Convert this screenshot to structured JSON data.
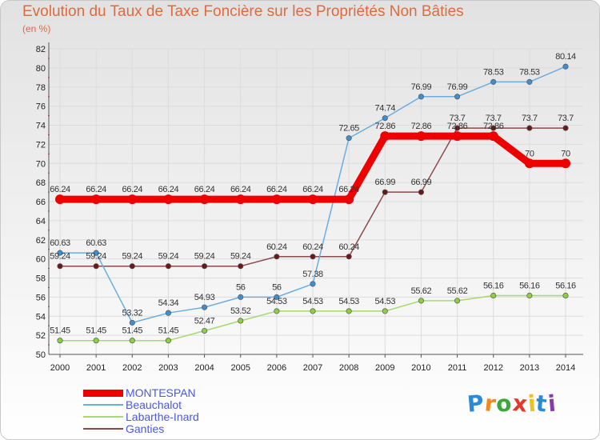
{
  "colors": {
    "title": "#e06a3c",
    "legend_text": "#4a5ad8",
    "grid": "#dcdcdc",
    "axis": "#555555"
  },
  "chart_data": {
    "type": "line",
    "title": "Evolution du Taux de Taxe Foncière sur les Propriétés Non Bâties",
    "ylabel": "(en %)",
    "xlabel": "",
    "ylim": [
      50,
      82
    ],
    "y_ticks": [
      "50",
      "52",
      "54",
      "56",
      "58",
      "60",
      "62",
      "64",
      "66",
      "68",
      "70",
      "72",
      "74",
      "76",
      "78",
      "80",
      "82"
    ],
    "categories": [
      "2000",
      "2001",
      "2002",
      "2003",
      "2004",
      "2005",
      "2006",
      "2007",
      "2008",
      "2009",
      "2010",
      "2011",
      "2012",
      "2013",
      "2014"
    ],
    "series": [
      {
        "name": "MONTESPAN",
        "color": "#ee0000",
        "marker": "#ee0000",
        "values": [
          66.24,
          66.24,
          66.24,
          66.24,
          66.24,
          66.24,
          66.24,
          66.24,
          66.24,
          72.86,
          72.86,
          72.86,
          72.86,
          70,
          70
        ],
        "labels": [
          "66.24",
          "66.24",
          "66.24",
          "66.24",
          "66.24",
          "66.24",
          "66.24",
          "66.24",
          "66.24",
          "72.86",
          "72.86",
          "72.86",
          "72.86",
          "70",
          "70"
        ]
      },
      {
        "name": "Beauchalot",
        "color": "#6aaee0",
        "marker": "#3d8fd0",
        "values": [
          60.63,
          60.63,
          53.32,
          54.34,
          54.93,
          56,
          56,
          57.38,
          72.65,
          74.74,
          76.99,
          76.99,
          78.53,
          78.53,
          80.14
        ],
        "labels": [
          "60.63",
          "60.63",
          "53.32",
          "54.34",
          "54.93",
          "56",
          "56",
          "57.38",
          "72.65",
          "74.74",
          "76.99",
          "76.99",
          "78.53",
          "78.53",
          "80.14"
        ]
      },
      {
        "name": "Labarthe-Inard",
        "color": "#a8d870",
        "marker": "#8cd040",
        "values": [
          51.45,
          51.45,
          51.45,
          51.45,
          52.47,
          53.52,
          54.53,
          54.53,
          54.53,
          54.53,
          55.62,
          55.62,
          56.16,
          56.16,
          56.16
        ],
        "labels": [
          "51.45",
          "51.45",
          "51.45",
          "51.45",
          "52.47",
          "53.52",
          "54.53",
          "54.53",
          "54.53",
          "54.53",
          "55.62",
          "55.62",
          "56.16",
          "56.16",
          "56.16"
        ]
      },
      {
        "name": "Ganties",
        "color": "#8a4a4a",
        "marker": "#6a1818",
        "values": [
          59.24,
          59.24,
          59.24,
          59.24,
          59.24,
          59.24,
          60.24,
          60.24,
          60.24,
          66.99,
          66.99,
          73.7,
          73.7,
          73.7,
          73.7
        ],
        "labels": [
          "59.24",
          "59.24",
          "59.24",
          "59.24",
          "59.24",
          "59.24",
          "60.24",
          "60.24",
          "60.24",
          "66.99",
          "66.99",
          "73.7",
          "73.7",
          "73.7",
          "73.7"
        ]
      }
    ],
    "legend_position": "bottom-left"
  },
  "logo": {
    "letters": [
      "P",
      "r",
      "o",
      "x",
      "i",
      "t",
      "i"
    ],
    "colors": [
      "#2a8ad8",
      "#f08a1c",
      "#3aa83a",
      "#e03a2a",
      "#f0c020",
      "#2a8ad8",
      "#8a3aa8"
    ]
  }
}
